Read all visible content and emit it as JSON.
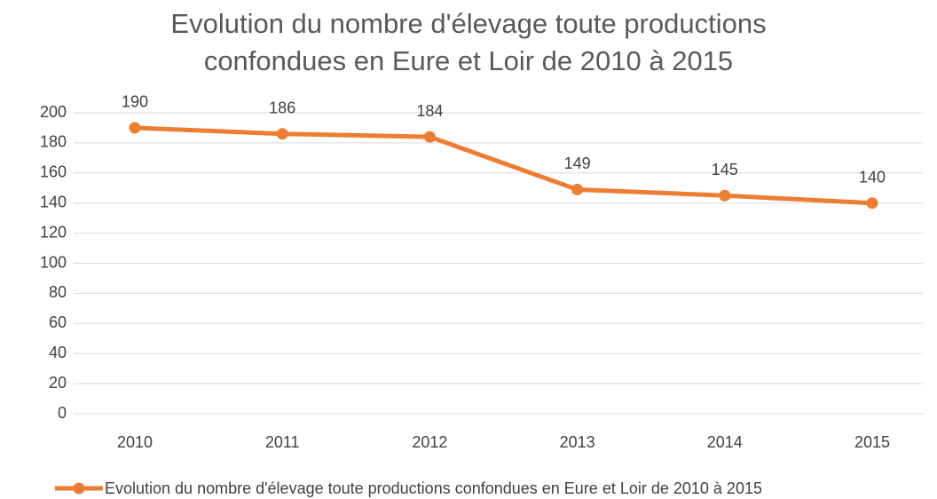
{
  "chart_data": {
    "type": "line",
    "title": "Evolution du nombre d'élevage toute productions confondues en Eure et Loir de 2010 à 2015",
    "categories": [
      "2010",
      "2011",
      "2012",
      "2013",
      "2014",
      "2015"
    ],
    "series": [
      {
        "name": "Evolution du nombre d'élevage toute productions confondues en Eure et Loir de 2010 à 2015",
        "color": "#ed7d31",
        "values": [
          190,
          186,
          184,
          149,
          145,
          140
        ]
      }
    ],
    "ylim": [
      0,
      200
    ],
    "yticks": [
      0,
      20,
      40,
      60,
      80,
      100,
      120,
      140,
      160,
      180,
      200
    ],
    "grid": true,
    "legend": "bottom",
    "data_labels": true
  }
}
